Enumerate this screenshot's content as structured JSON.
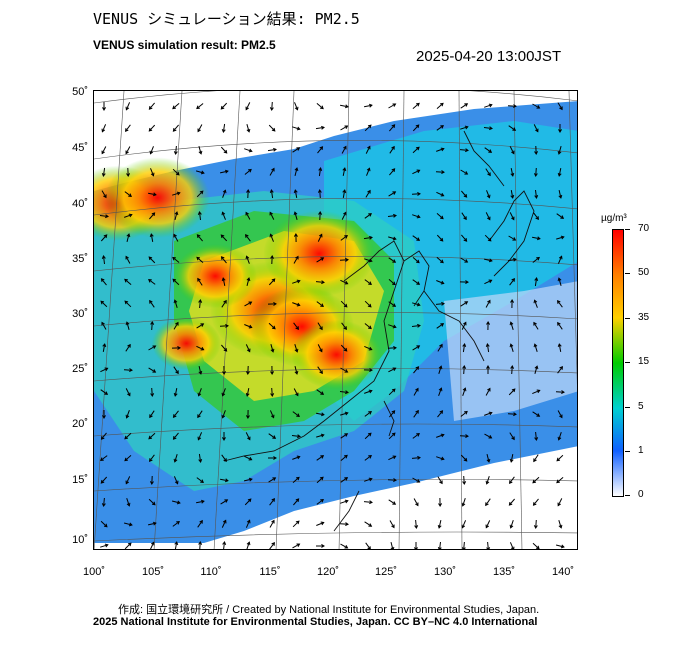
{
  "header": {
    "title_jp": "VENUS シミュレーション結果: PM2.5",
    "title_en": "VENUS simulation result: PM2.5",
    "timestamp": "2025-04-20 13:00JST"
  },
  "map": {
    "lon_range": [
      100,
      142
    ],
    "lat_range": [
      9,
      50
    ],
    "lat_ticks": [
      "50˚",
      "45˚",
      "40˚",
      "35˚",
      "30˚",
      "25˚",
      "20˚",
      "15˚",
      "10˚"
    ],
    "lon_ticks": [
      "100˚",
      "105˚",
      "110˚",
      "115˚",
      "120˚",
      "125˚",
      "130˚",
      "135˚",
      "140˚"
    ],
    "pollution_hotspots": [
      {
        "lon": 115.5,
        "lat": 30.5,
        "level": 70
      },
      {
        "lon": 119.5,
        "lat": 35.5,
        "level": 60
      },
      {
        "lon": 118.0,
        "lat": 29.0,
        "level": 55
      },
      {
        "lon": 121.0,
        "lat": 26.5,
        "level": 45
      },
      {
        "lon": 110.5,
        "lat": 33.5,
        "level": 40
      },
      {
        "lon": 102.0,
        "lat": 40.0,
        "level": 50
      },
      {
        "lon": 105.5,
        "lat": 40.5,
        "level": 55
      },
      {
        "lon": 108.0,
        "lat": 27.5,
        "level": 30
      }
    ]
  },
  "colorbar": {
    "unit": "µg/m³",
    "ticks": [
      "70",
      "50",
      "35",
      "15",
      "5",
      "1",
      "0"
    ],
    "colors": [
      "#ff0000",
      "#ff8000",
      "#ffd000",
      "#00cc00",
      "#00d0d0",
      "#1060ff",
      "#ffffff"
    ]
  },
  "footer": {
    "credit": "作成: 国立環境研究所 / Created by National Institute for Environmental Studies, Japan.",
    "copyright": "2025 National Institute for Environmental Studies, Japan. CC BY–NC 4.0 International"
  }
}
